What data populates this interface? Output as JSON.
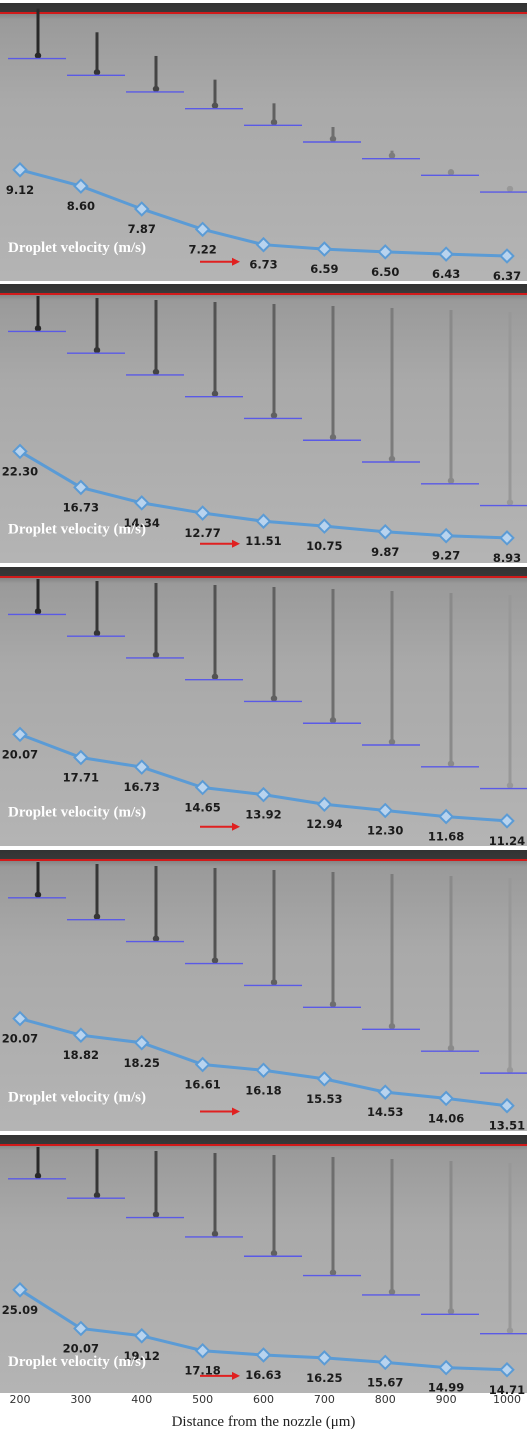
{
  "figure": {
    "xlabel": "Distance from the nozzle (μm)",
    "x_ticks": [
      "200",
      "300",
      "400",
      "500",
      "600",
      "700",
      "800",
      "900",
      "1000"
    ]
  },
  "colors": {
    "series_line": "#5b9bd5",
    "marker_fill": "#b8d3ee",
    "nozzle_line": "#d11a1a",
    "arrow": "#e02020",
    "droplet_level": "#5a5ae6",
    "panel_background": "#a9a9a9",
    "label_text": "#ffffff",
    "value_text": "#1b1b1b"
  },
  "chart_data": [
    {
      "type": "line",
      "overlay_label": "Droplet velocity (m/s)",
      "xlabel": "Distance from the nozzle (μm)",
      "x": [
        200,
        300,
        400,
        500,
        600,
        700,
        800,
        900,
        1000
      ],
      "series": [
        {
          "values": [
            9.12,
            8.6,
            7.87,
            7.22,
            6.73,
            6.59,
            6.5,
            6.43,
            6.37
          ]
        }
      ],
      "data_labels": [
        "9.12",
        "8.60",
        "7.87",
        "7.22",
        "6.73",
        "6.59",
        "6.50",
        "6.43",
        "6.37"
      ],
      "ylim": [
        6.37,
        9.12
      ]
    },
    {
      "type": "line",
      "overlay_label": "Droplet velocity (m/s)",
      "xlabel": "Distance from the nozzle (μm)",
      "x": [
        200,
        300,
        400,
        500,
        600,
        700,
        800,
        900,
        1000
      ],
      "series": [
        {
          "values": [
            22.3,
            16.73,
            14.34,
            12.77,
            11.51,
            10.75,
            9.87,
            9.27,
            8.93
          ]
        }
      ],
      "data_labels": [
        "22.30",
        "16.73",
        "14.34",
        "12.77",
        "11.51",
        "10.75",
        "9.87",
        "9.27",
        "8.93"
      ],
      "ylim": [
        8.93,
        22.3
      ]
    },
    {
      "type": "line",
      "overlay_label": "Droplet velocity (m/s)",
      "xlabel": "Distance from the nozzle (μm)",
      "x": [
        200,
        300,
        400,
        500,
        600,
        700,
        800,
        900,
        1000
      ],
      "series": [
        {
          "values": [
            20.07,
            17.71,
            16.73,
            14.65,
            13.92,
            12.94,
            12.3,
            11.68,
            11.24
          ]
        }
      ],
      "data_labels": [
        "20.07",
        "17.71",
        "16.73",
        "14.65",
        "13.92",
        "12.94",
        "12.30",
        "11.68",
        "11.24"
      ],
      "ylim": [
        11.24,
        20.07
      ]
    },
    {
      "type": "line",
      "overlay_label": "Droplet velocity (m/s)",
      "xlabel": "Distance from the nozzle (μm)",
      "x": [
        200,
        300,
        400,
        500,
        600,
        700,
        800,
        900,
        1000
      ],
      "series": [
        {
          "values": [
            20.07,
            18.82,
            18.25,
            16.61,
            16.18,
            15.53,
            14.53,
            14.06,
            13.51
          ]
        }
      ],
      "data_labels": [
        "20.07",
        "18.82",
        "18.25",
        "16.61",
        "16.18",
        "15.53",
        "14.53",
        "14.06",
        "13.51"
      ],
      "ylim": [
        13.51,
        20.07
      ]
    },
    {
      "type": "line",
      "overlay_label": "Droplet velocity (m/s)",
      "xlabel": "Distance from the nozzle (μm)",
      "x": [
        200,
        300,
        400,
        500,
        600,
        700,
        800,
        900,
        1000
      ],
      "series": [
        {
          "values": [
            25.09,
            20.07,
            19.12,
            17.18,
            16.63,
            16.25,
            15.67,
            14.99,
            14.71
          ]
        }
      ],
      "data_labels": [
        "25.09",
        "20.07",
        "19.12",
        "17.18",
        "16.63",
        "16.25",
        "15.67",
        "14.99",
        "14.71"
      ],
      "ylim": [
        14.71,
        25.09
      ]
    }
  ]
}
